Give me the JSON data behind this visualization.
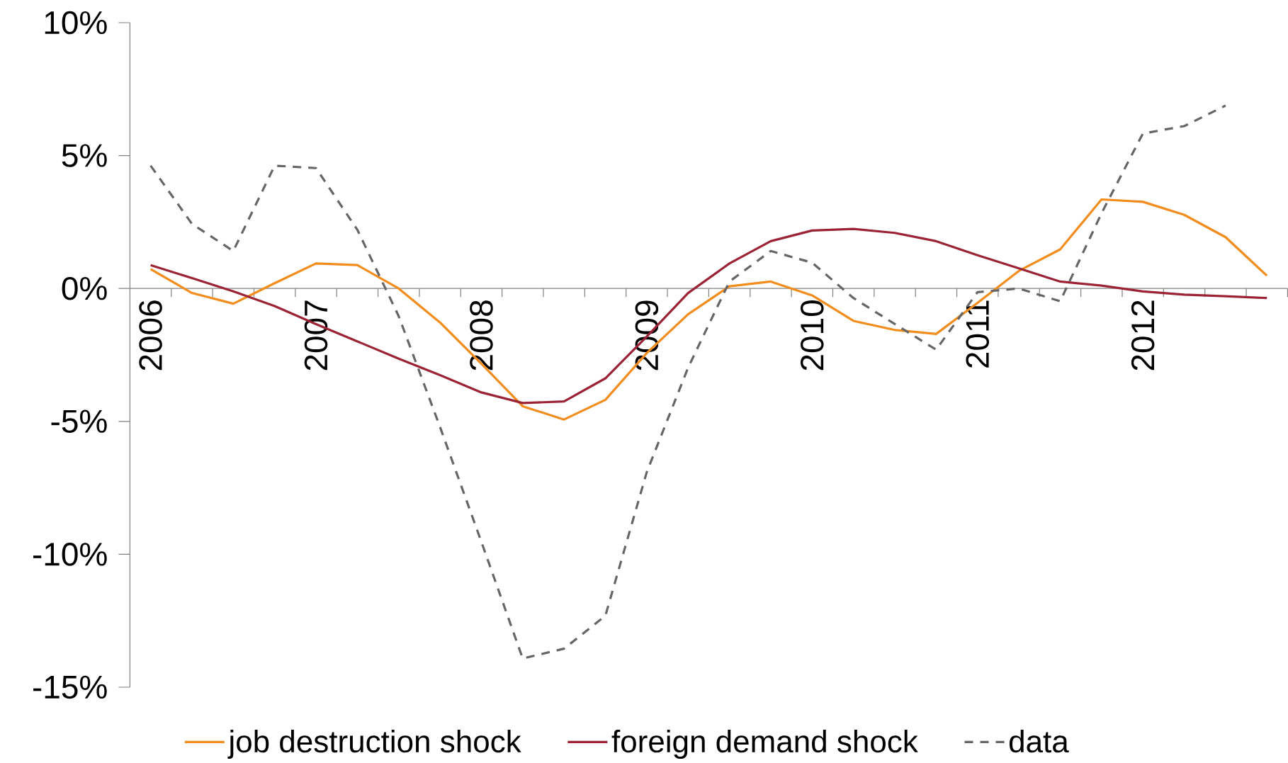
{
  "chart_data": {
    "type": "line",
    "categories": [
      "2006",
      null,
      null,
      null,
      "2007",
      null,
      null,
      null,
      "2008",
      null,
      null,
      null,
      "2009",
      null,
      null,
      null,
      "2010",
      null,
      null,
      null,
      "2011",
      null,
      null,
      null,
      "2012",
      null,
      null,
      null
    ],
    "ylim": [
      -15,
      10
    ],
    "yticks": [
      {
        "value": -15,
        "label": "-15%"
      },
      {
        "value": -10,
        "label": "-10%"
      },
      {
        "value": -5,
        "label": "-5%"
      },
      {
        "value": 0,
        "label": "0%"
      },
      {
        "value": 5,
        "label": "5%"
      },
      {
        "value": 10,
        "label": "10%"
      }
    ],
    "legend": "bottom",
    "series": [
      {
        "name": "job destruction shock",
        "color": "#f28c1c",
        "line_style": "solid",
        "values": [
          0.73,
          -0.17,
          -0.57,
          0.2,
          0.94,
          0.88,
          0.0,
          -1.28,
          -2.83,
          -4.43,
          -4.93,
          -4.19,
          -2.43,
          -0.97,
          0.08,
          0.26,
          -0.26,
          -1.22,
          -1.56,
          -1.71,
          -0.54,
          0.66,
          1.47,
          3.35,
          3.26,
          2.77,
          1.93,
          0.48
        ]
      },
      {
        "name": "foreign demand shock",
        "color": "#9b2335",
        "line_style": "solid",
        "values": [
          0.88,
          0.39,
          -0.11,
          -0.66,
          -1.34,
          -1.99,
          -2.64,
          -3.26,
          -3.91,
          -4.31,
          -4.25,
          -3.38,
          -1.81,
          -0.17,
          0.94,
          1.78,
          2.18,
          2.24,
          2.09,
          1.78,
          1.25,
          0.76,
          0.26,
          0.11,
          -0.11,
          -0.23,
          -0.29,
          -0.36
        ]
      },
      {
        "name": "data",
        "color": "#666666",
        "line_style": "dashed",
        "values": [
          4.62,
          2.43,
          1.41,
          4.62,
          4.53,
          2.21,
          -1.04,
          -5.21,
          -9.53,
          -13.92,
          -13.55,
          -12.31,
          -6.91,
          -2.98,
          0.26,
          1.41,
          0.97,
          -0.36,
          -1.34,
          -2.3,
          -0.14,
          0.0,
          -0.48,
          2.83,
          5.83,
          6.11,
          6.88,
          null
        ]
      }
    ]
  }
}
